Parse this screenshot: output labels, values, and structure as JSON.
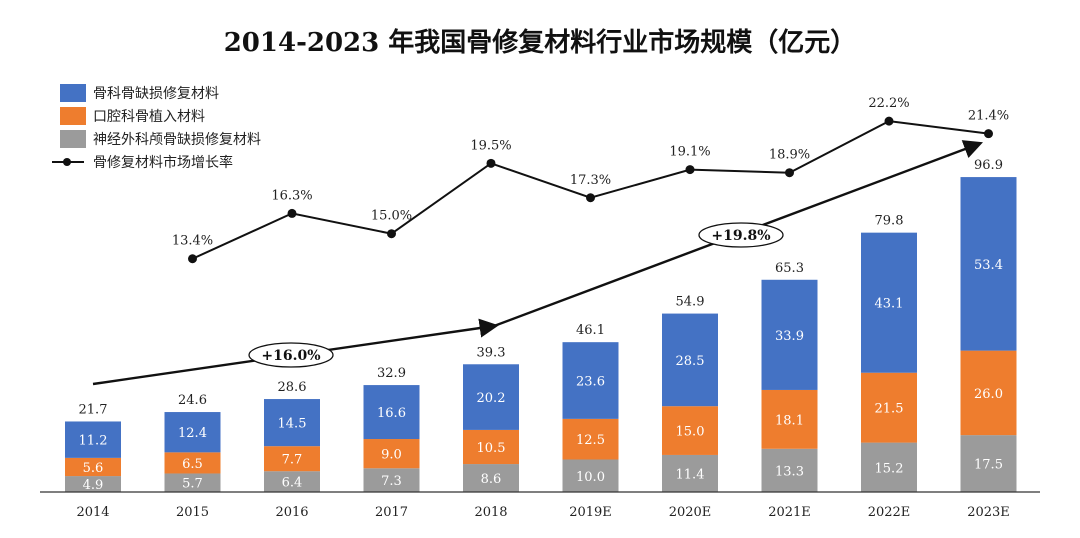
{
  "chart_data": {
    "type": "bar",
    "title": "2014-2023 年我国骨修复材料行业市场规模（亿元）",
    "categories": [
      "2014",
      "2015",
      "2016",
      "2017",
      "2018",
      "2019E",
      "2020E",
      "2021E",
      "2022E",
      "2023E"
    ],
    "series": [
      {
        "name": "神经外科颅骨缺损修复材料",
        "values": [
          4.9,
          5.7,
          6.4,
          7.3,
          8.6,
          10.0,
          11.4,
          13.3,
          15.2,
          17.5
        ],
        "color": "#9b9b9b"
      },
      {
        "name": "口腔科骨植入材料",
        "values": [
          5.6,
          6.5,
          7.7,
          9.0,
          10.5,
          12.5,
          15.0,
          18.1,
          21.5,
          26.0
        ],
        "color": "#ee7d2e"
      },
      {
        "name": "骨科骨缺损修复材料",
        "values": [
          11.2,
          12.4,
          14.5,
          16.6,
          20.2,
          23.6,
          28.5,
          33.9,
          43.1,
          53.4
        ],
        "color": "#4472c4"
      }
    ],
    "totals": [
      21.7,
      24.6,
      28.6,
      32.9,
      39.3,
      46.1,
      54.9,
      65.3,
      79.8,
      96.9
    ],
    "growth_rate": {
      "name": "骨修复材料市场增长率",
      "labels": [
        "",
        "13.4%",
        "16.3%",
        "15.0%",
        "19.5%",
        "17.3%",
        "19.1%",
        "18.9%",
        "22.2%",
        "21.4%"
      ],
      "values": [
        null,
        13.4,
        16.3,
        15.0,
        19.5,
        17.3,
        19.1,
        18.9,
        22.2,
        21.4
      ]
    },
    "annotations": [
      {
        "text": "+16.0%"
      },
      {
        "text": "+19.8%"
      }
    ],
    "ylim": [
      0,
      100
    ],
    "legend": "top-left"
  }
}
